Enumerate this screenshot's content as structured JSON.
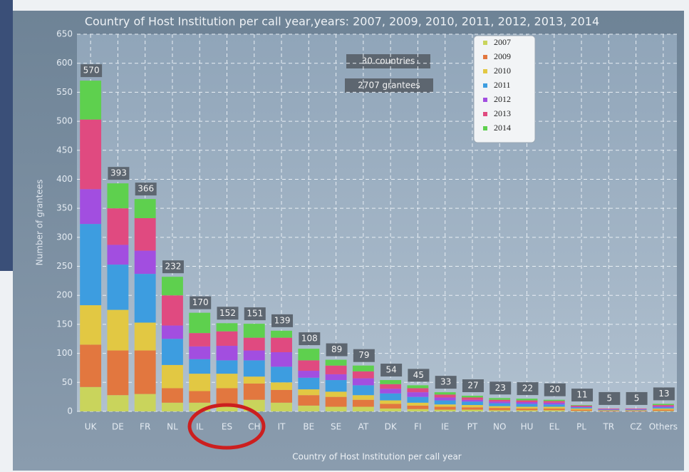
{
  "chart_data": {
    "type": "stacked_bar",
    "title": "Country of Host Institution per call year,years: 2007, 2009, 2010, 2011, 2012, 2013, 2014",
    "x_label": "Country of Host Institution per call year",
    "y_label": "Number of grantees",
    "annotations": [
      "30 countries",
      "2707 grantees"
    ],
    "categories": [
      "UK",
      "DE",
      "FR",
      "NL",
      "IL",
      "ES",
      "CH",
      "IT",
      "BE",
      "SE",
      "AT",
      "DK",
      "FI",
      "IE",
      "PT",
      "NO",
      "HU",
      "EL",
      "PL",
      "TR",
      "CZ",
      "Others"
    ],
    "totals": [
      570,
      393,
      366,
      232,
      170,
      152,
      151,
      139,
      108,
      89,
      79,
      54,
      45,
      33,
      27,
      23,
      22,
      20,
      11,
      5,
      5,
      13
    ],
    "series": [
      {
        "name": "2007",
        "color": "#c9d45c",
        "values": [
          42,
          28,
          30,
          15,
          15,
          12,
          20,
          15,
          10,
          8,
          8,
          5,
          4,
          3,
          3,
          2,
          2,
          2,
          1,
          0,
          0,
          1
        ]
      },
      {
        "name": "2009",
        "color": "#e2773f",
        "values": [
          73,
          77,
          75,
          25,
          20,
          28,
          28,
          22,
          18,
          17,
          12,
          8,
          6,
          5,
          4,
          4,
          3,
          3,
          2,
          1,
          1,
          2
        ]
      },
      {
        "name": "2010",
        "color": "#e2c843",
        "values": [
          68,
          70,
          48,
          40,
          30,
          25,
          12,
          13,
          10,
          9,
          8,
          6,
          5,
          4,
          4,
          3,
          3,
          3,
          2,
          1,
          1,
          2
        ]
      },
      {
        "name": "2011",
        "color": "#3d9de0",
        "values": [
          140,
          78,
          84,
          45,
          25,
          23,
          28,
          27,
          20,
          20,
          17,
          12,
          10,
          7,
          6,
          5,
          5,
          4,
          2,
          1,
          1,
          2
        ]
      },
      {
        "name": "2012",
        "color": "#a24ee0",
        "values": [
          60,
          34,
          40,
          23,
          22,
          25,
          17,
          25,
          12,
          10,
          12,
          8,
          8,
          5,
          3,
          3,
          3,
          3,
          1,
          1,
          1,
          2
        ]
      },
      {
        "name": "2013",
        "color": "#e04a80",
        "values": [
          120,
          63,
          56,
          52,
          23,
          25,
          22,
          25,
          18,
          15,
          12,
          8,
          7,
          5,
          4,
          3,
          3,
          3,
          2,
          1,
          1,
          2
        ]
      },
      {
        "name": "2014",
        "color": "#5ed04e",
        "values": [
          67,
          43,
          33,
          32,
          35,
          14,
          24,
          12,
          20,
          10,
          10,
          7,
          5,
          4,
          3,
          3,
          3,
          2,
          1,
          0,
          0,
          2
        ]
      }
    ],
    "ylim": [
      0,
      650
    ],
    "yticks": [
      0,
      50,
      100,
      150,
      200,
      250,
      300,
      350,
      400,
      450,
      500,
      550,
      600,
      650
    ],
    "grid": true,
    "legend": "upper right"
  }
}
